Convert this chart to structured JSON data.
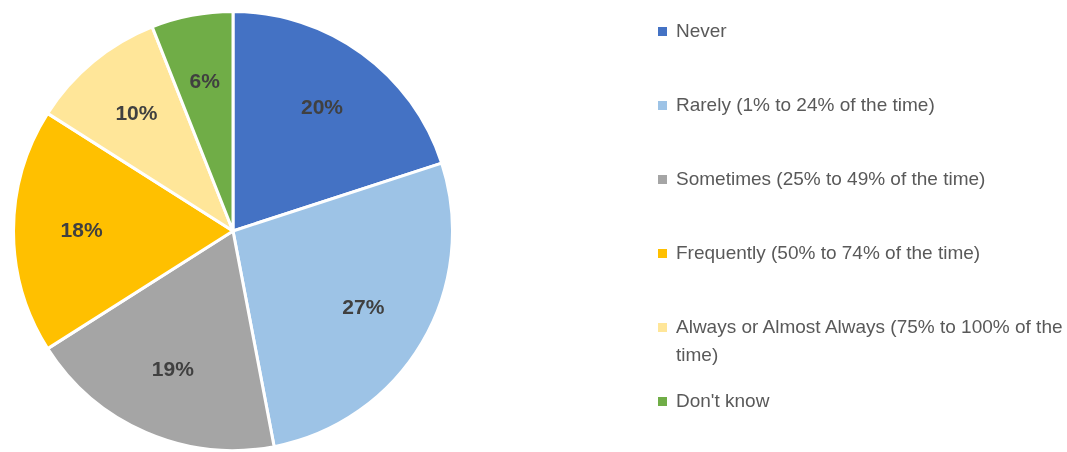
{
  "chart_data": {
    "type": "pie",
    "categories": [
      "Never",
      "Rarely (1% to 24% of the time)",
      "Sometimes (25% to 49% of the time)",
      "Frequently (50% to 74% of the time)",
      "Always or Almost Always (75% to 100% of the time)",
      "Don't know"
    ],
    "values": [
      20,
      27,
      19,
      18,
      10,
      6
    ],
    "colors": [
      "#4472c4",
      "#9dc3e6",
      "#a5a5a5",
      "#ffc000",
      "#ffe699",
      "#70ad47"
    ],
    "value_labels": [
      "20%",
      "27%",
      "19%",
      "18%",
      "10%",
      "6%"
    ],
    "legend": "right"
  }
}
